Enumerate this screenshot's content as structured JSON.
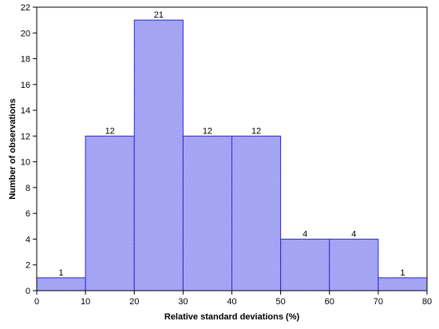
{
  "chart_data": {
    "type": "bar",
    "subtype": "histogram",
    "title": "",
    "xlabel": "Relative standard deviations (%)",
    "ylabel": "Number of observations",
    "bins": [
      {
        "from": 0,
        "to": 10,
        "value": 1
      },
      {
        "from": 10,
        "to": 20,
        "value": 12
      },
      {
        "from": 20,
        "to": 30,
        "value": 21
      },
      {
        "from": 30,
        "to": 40,
        "value": 12
      },
      {
        "from": 40,
        "to": 50,
        "value": 12
      },
      {
        "from": 50,
        "to": 60,
        "value": 4
      },
      {
        "from": 60,
        "to": 70,
        "value": 4
      },
      {
        "from": 70,
        "to": 80,
        "value": 1
      }
    ],
    "data_labels": [
      "1",
      "12",
      "21",
      "12",
      "12",
      "4",
      "4",
      "1"
    ],
    "xlim": [
      0,
      80
    ],
    "ylim": [
      0,
      22
    ],
    "x_ticks": [
      "0",
      "10",
      "20",
      "30",
      "40",
      "50",
      "60",
      "70",
      "80"
    ],
    "y_ticks": [
      "0",
      "2",
      "4",
      "6",
      "8",
      "10",
      "12",
      "14",
      "16",
      "18",
      "20",
      "22"
    ],
    "grid": false,
    "legend": "none",
    "bar_fill": "#a9a9f5",
    "bar_hatch": "#8c8cee",
    "bar_stroke": "#2a2ad6"
  }
}
